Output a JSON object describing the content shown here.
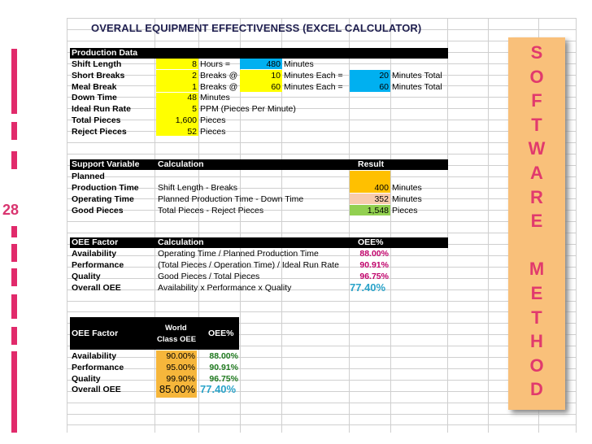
{
  "page_number": "28",
  "title": "OVERALL EQUIPMENT EFFECTIVENESS  (EXCEL CALCULATOR)",
  "banner_letters": [
    "S",
    "O",
    "F",
    "T",
    "W",
    "A",
    "R",
    "E",
    "",
    "M",
    "E",
    "T",
    "H",
    "O",
    "D"
  ],
  "production": {
    "header": "Production Data",
    "rows": [
      {
        "label": "Shift Length",
        "value": "8",
        "unit": "Hours =",
        "v2": "480",
        "u2": "Minutes"
      },
      {
        "label": "Short Breaks",
        "value": "2",
        "unit": "Breaks @",
        "v2": "10",
        "u2": "Minutes Each =",
        "v3": "20",
        "u3": "Minutes Total"
      },
      {
        "label": "Meal Break",
        "value": "1",
        "unit": "Breaks @",
        "v2": "60",
        "u2": "Minutes Each =",
        "v3": "60",
        "u3": "Minutes Total"
      },
      {
        "label": "Down Time",
        "value": "48",
        "unit": "Minutes"
      },
      {
        "label": "Ideal Run Rate",
        "value": "5",
        "unit": "PPM (Pieces Per Minute)"
      },
      {
        "label": "Total Pieces",
        "value": "1,600",
        "unit": "Pieces"
      },
      {
        "label": "Reject Pieces",
        "value": "52",
        "unit": "Pieces"
      }
    ]
  },
  "support": {
    "headers": {
      "variable": "Support Variable",
      "calculation": "Calculation",
      "result": "Result"
    },
    "planned_line1": "Planned",
    "rows": [
      {
        "label": "Production Time",
        "calc": "Shift Length - Breaks",
        "value": "400",
        "unit": "Minutes"
      },
      {
        "label": "Operating Time",
        "calc": "Planned Production Time - Down Time",
        "value": "352",
        "unit": "Minutes"
      },
      {
        "label": "Good Pieces",
        "calc": "Total Pieces - Reject Pieces",
        "value": "1,548",
        "unit": "Pieces"
      }
    ]
  },
  "oee": {
    "headers": {
      "factor": "OEE Factor",
      "calculation": "Calculation",
      "oee": "OEE%"
    },
    "rows": [
      {
        "label": "Availability",
        "calc": "Operating Time / Planned Production Time",
        "value": "88.00%"
      },
      {
        "label": "Performance",
        "calc": "(Total Pieces / Operation Time) / Ideal Run Rate",
        "value": "90.91%"
      },
      {
        "label": "Quality",
        "calc": "Good Pieces / Total Pieces",
        "value": "96.75%"
      },
      {
        "label": "Overall OEE",
        "calc": "Availability x Performance x Quality",
        "value": "77.40%"
      }
    ]
  },
  "world": {
    "headers": {
      "factor": "OEE Factor",
      "world1": "World",
      "world2": "Class OEE",
      "oee": "OEE%"
    },
    "rows": [
      {
        "label": "Availability",
        "world": "90.00%",
        "oee": "88.00%"
      },
      {
        "label": "Performance",
        "world": "95.00%",
        "oee": "90.91%"
      },
      {
        "label": "Quality",
        "world": "99.90%",
        "oee": "96.75%"
      },
      {
        "label": "Overall OEE",
        "world": "85.00%",
        "oee": "77.40%"
      }
    ]
  },
  "colors": {
    "accent": "#e12a6b",
    "banner": "#f9c07a",
    "yellow": "#ffff00",
    "blue": "#00b0f0",
    "orange": "#ffc000",
    "peach": "#f8cbad",
    "green": "#92d050",
    "gold": "#f6b63b"
  }
}
